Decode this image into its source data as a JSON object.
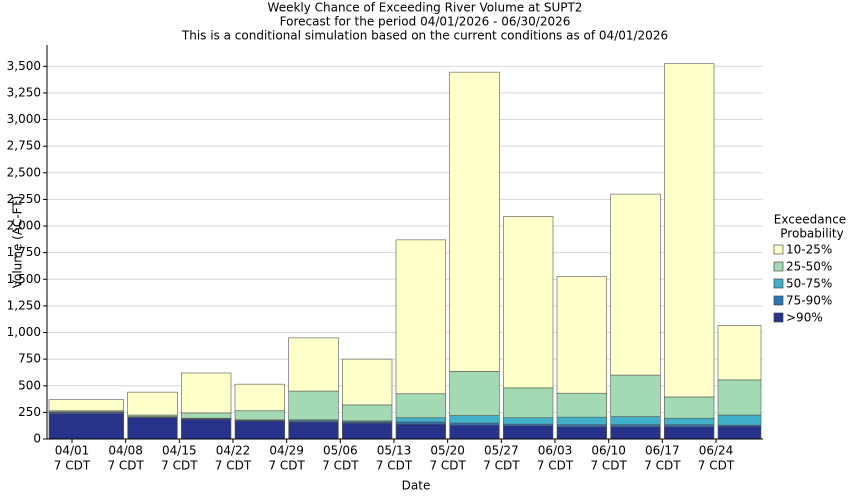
{
  "chart_data": {
    "type": "stacked_bar",
    "title": [
      "Weekly Chance of Exceeding River Volume at SUPT2",
      "Forecast for the period 04/01/2026 - 06/30/2026",
      "This is a conditional simulation based on the current conditions as of 04/01/2026"
    ],
    "x_label": "Date",
    "y_label": "Volume (AC-FT)",
    "legend_title": [
      "Exceedance",
      "Probability"
    ],
    "categories": [
      [
        "04/01",
        "7 CDT"
      ],
      [
        "04/08",
        "7 CDT"
      ],
      [
        "04/15",
        "7 CDT"
      ],
      [
        "04/22",
        "7 CDT"
      ],
      [
        "04/29",
        "7 CDT"
      ],
      [
        "05/06",
        "7 CDT"
      ],
      [
        "05/13",
        "7 CDT"
      ],
      [
        "05/20",
        "7 CDT"
      ],
      [
        "05/27",
        "7 CDT"
      ],
      [
        "06/03",
        "7 CDT"
      ],
      [
        "06/10",
        "7 CDT"
      ],
      [
        "06/17",
        "7 CDT"
      ],
      [
        "06/24",
        "7 CDT"
      ]
    ],
    "series": [
      {
        "name": ">90%",
        "color": "#27338a",
        "values": [
          240,
          200,
          185,
          170,
          160,
          150,
          140,
          130,
          125,
          115,
          115,
          115,
          120
        ]
      },
      {
        "name": "75-90%",
        "color": "#2c76b6",
        "values": [
          10,
          5,
          5,
          5,
          10,
          10,
          20,
          20,
          15,
          20,
          20,
          20,
          10
        ]
      },
      {
        "name": "50-75%",
        "color": "#41b1c9",
        "values": [
          5,
          5,
          5,
          5,
          10,
          10,
          40,
          70,
          60,
          70,
          75,
          60,
          95
        ]
      },
      {
        "name": "25-50%",
        "color": "#a3dab4",
        "values": [
          10,
          15,
          50,
          85,
          270,
          150,
          225,
          415,
          280,
          225,
          390,
          200,
          330
        ]
      },
      {
        "name": "10-25%",
        "color": "#ffffc9",
        "values": [
          105,
          215,
          375,
          250,
          500,
          430,
          1445,
          2810,
          1610,
          1095,
          1700,
          3130,
          510
        ]
      }
    ],
    "ylim": [
      0,
      3700
    ],
    "yticks": [
      0,
      250,
      500,
      750,
      {
        "value": 1000,
        "label": "1,000"
      },
      {
        "value": 1250,
        "label": "1,250"
      },
      {
        "value": 1500,
        "label": "1,500"
      },
      {
        "value": 1750,
        "label": "1,750"
      },
      {
        "value": 2000,
        "label": "2,000"
      },
      {
        "value": 2250,
        "label": "2,250"
      },
      {
        "value": 2500,
        "label": "2,500"
      },
      {
        "value": 2750,
        "label": "2,750"
      },
      {
        "value": 3000,
        "label": "3,000"
      },
      {
        "value": 3250,
        "label": "3,250"
      },
      {
        "value": 3500,
        "label": "3,500"
      }
    ],
    "grid": true
  }
}
